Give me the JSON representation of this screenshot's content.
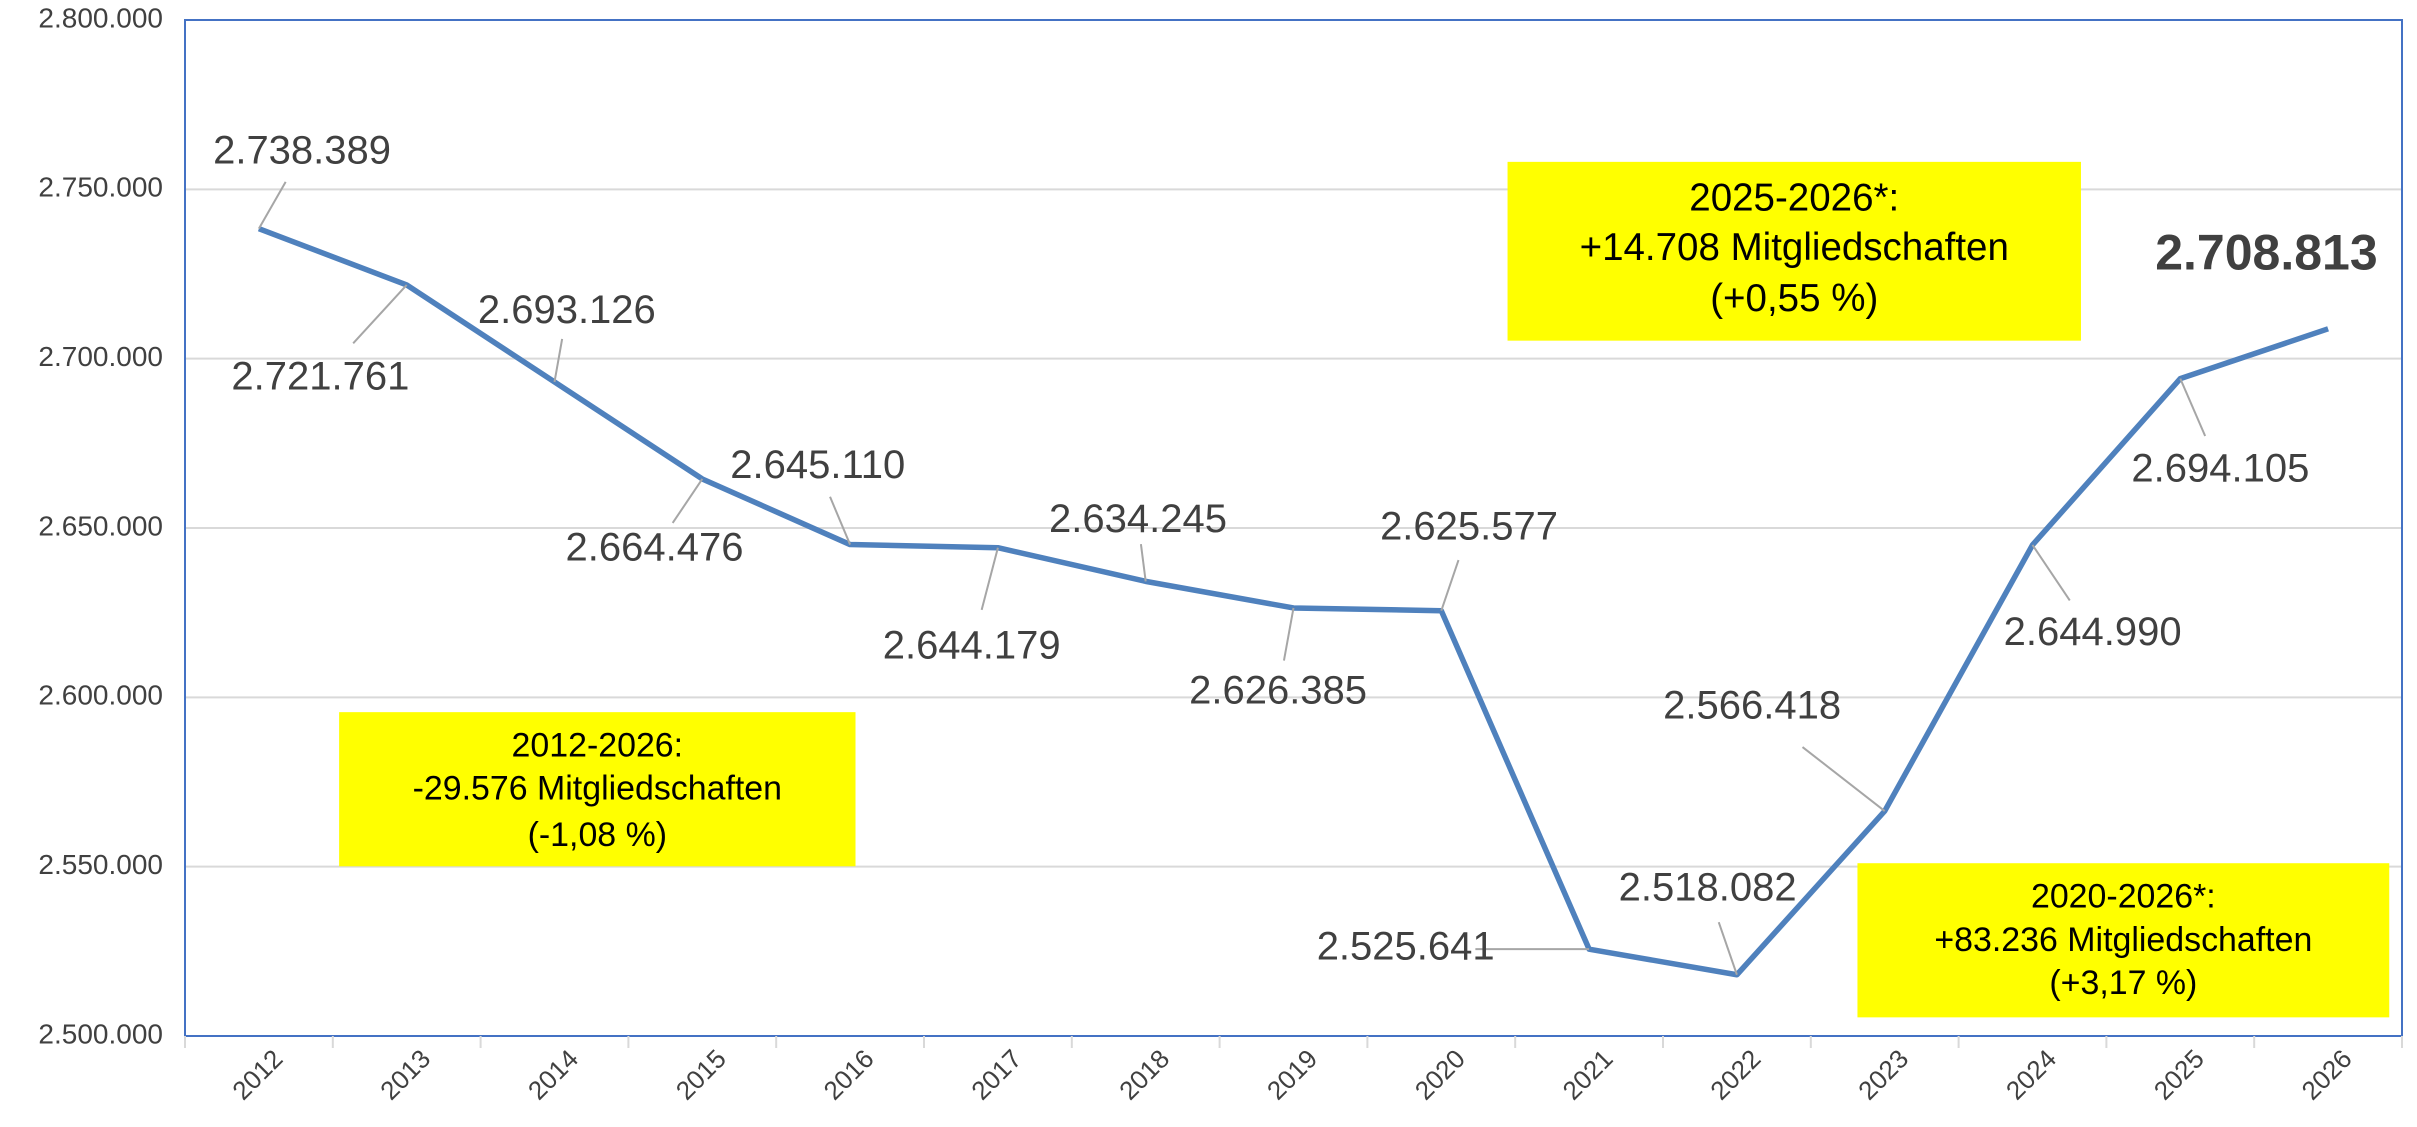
{
  "chart_data": {
    "type": "line",
    "categories": [
      "2012",
      "2013",
      "2014",
      "2015",
      "2016",
      "2017",
      "2018",
      "2019",
      "2020",
      "2021",
      "2022",
      "2023",
      "2024",
      "2025",
      "2026"
    ],
    "values": [
      2738389,
      2721761,
      2693126,
      2664476,
      2645110,
      2644179,
      2634245,
      2626385,
      2625577,
      2525641,
      2518082,
      2566418,
      2644990,
      2694105,
      2708813
    ],
    "value_labels": [
      "2.738.389",
      "2.721.761",
      "2.693.126",
      "2.664.476",
      "2.645.110",
      "2.644.179",
      "2.634.245",
      "2.626.385",
      "2.625.577",
      "2.525.641",
      "2.518.082",
      "2.566.418",
      "2.644.990",
      "2.694.105",
      "2.708.813"
    ],
    "color": "#4f81bd",
    "ylim": [
      2500000,
      2800000
    ],
    "yticks": [
      {
        "value": 2500000,
        "label": "2.500.000"
      },
      {
        "value": 2550000,
        "label": "2.550.000"
      },
      {
        "value": 2600000,
        "label": "2.600.000"
      },
      {
        "value": 2650000,
        "label": "2.650.000"
      },
      {
        "value": 2700000,
        "label": "2.700.000"
      },
      {
        "value": 2750000,
        "label": "2.750.000"
      },
      {
        "value": 2800000,
        "label": "2.800.000"
      }
    ],
    "grid": true,
    "annotations": [
      {
        "lines": [
          "2012-2026:",
          "-29.576 Mitgliedschaften",
          "(-1,08 %)"
        ],
        "color": "#ffff00"
      },
      {
        "lines": [
          "2025-2026*:",
          "+14.708 Mitgliedschaften",
          "(+0,55 %)"
        ],
        "color": "#ffff00"
      },
      {
        "lines": [
          "2020-2026*:",
          "+83.236 Mitgliedschaften",
          "(+3,17 %)"
        ],
        "color": "#ffff00"
      }
    ]
  }
}
